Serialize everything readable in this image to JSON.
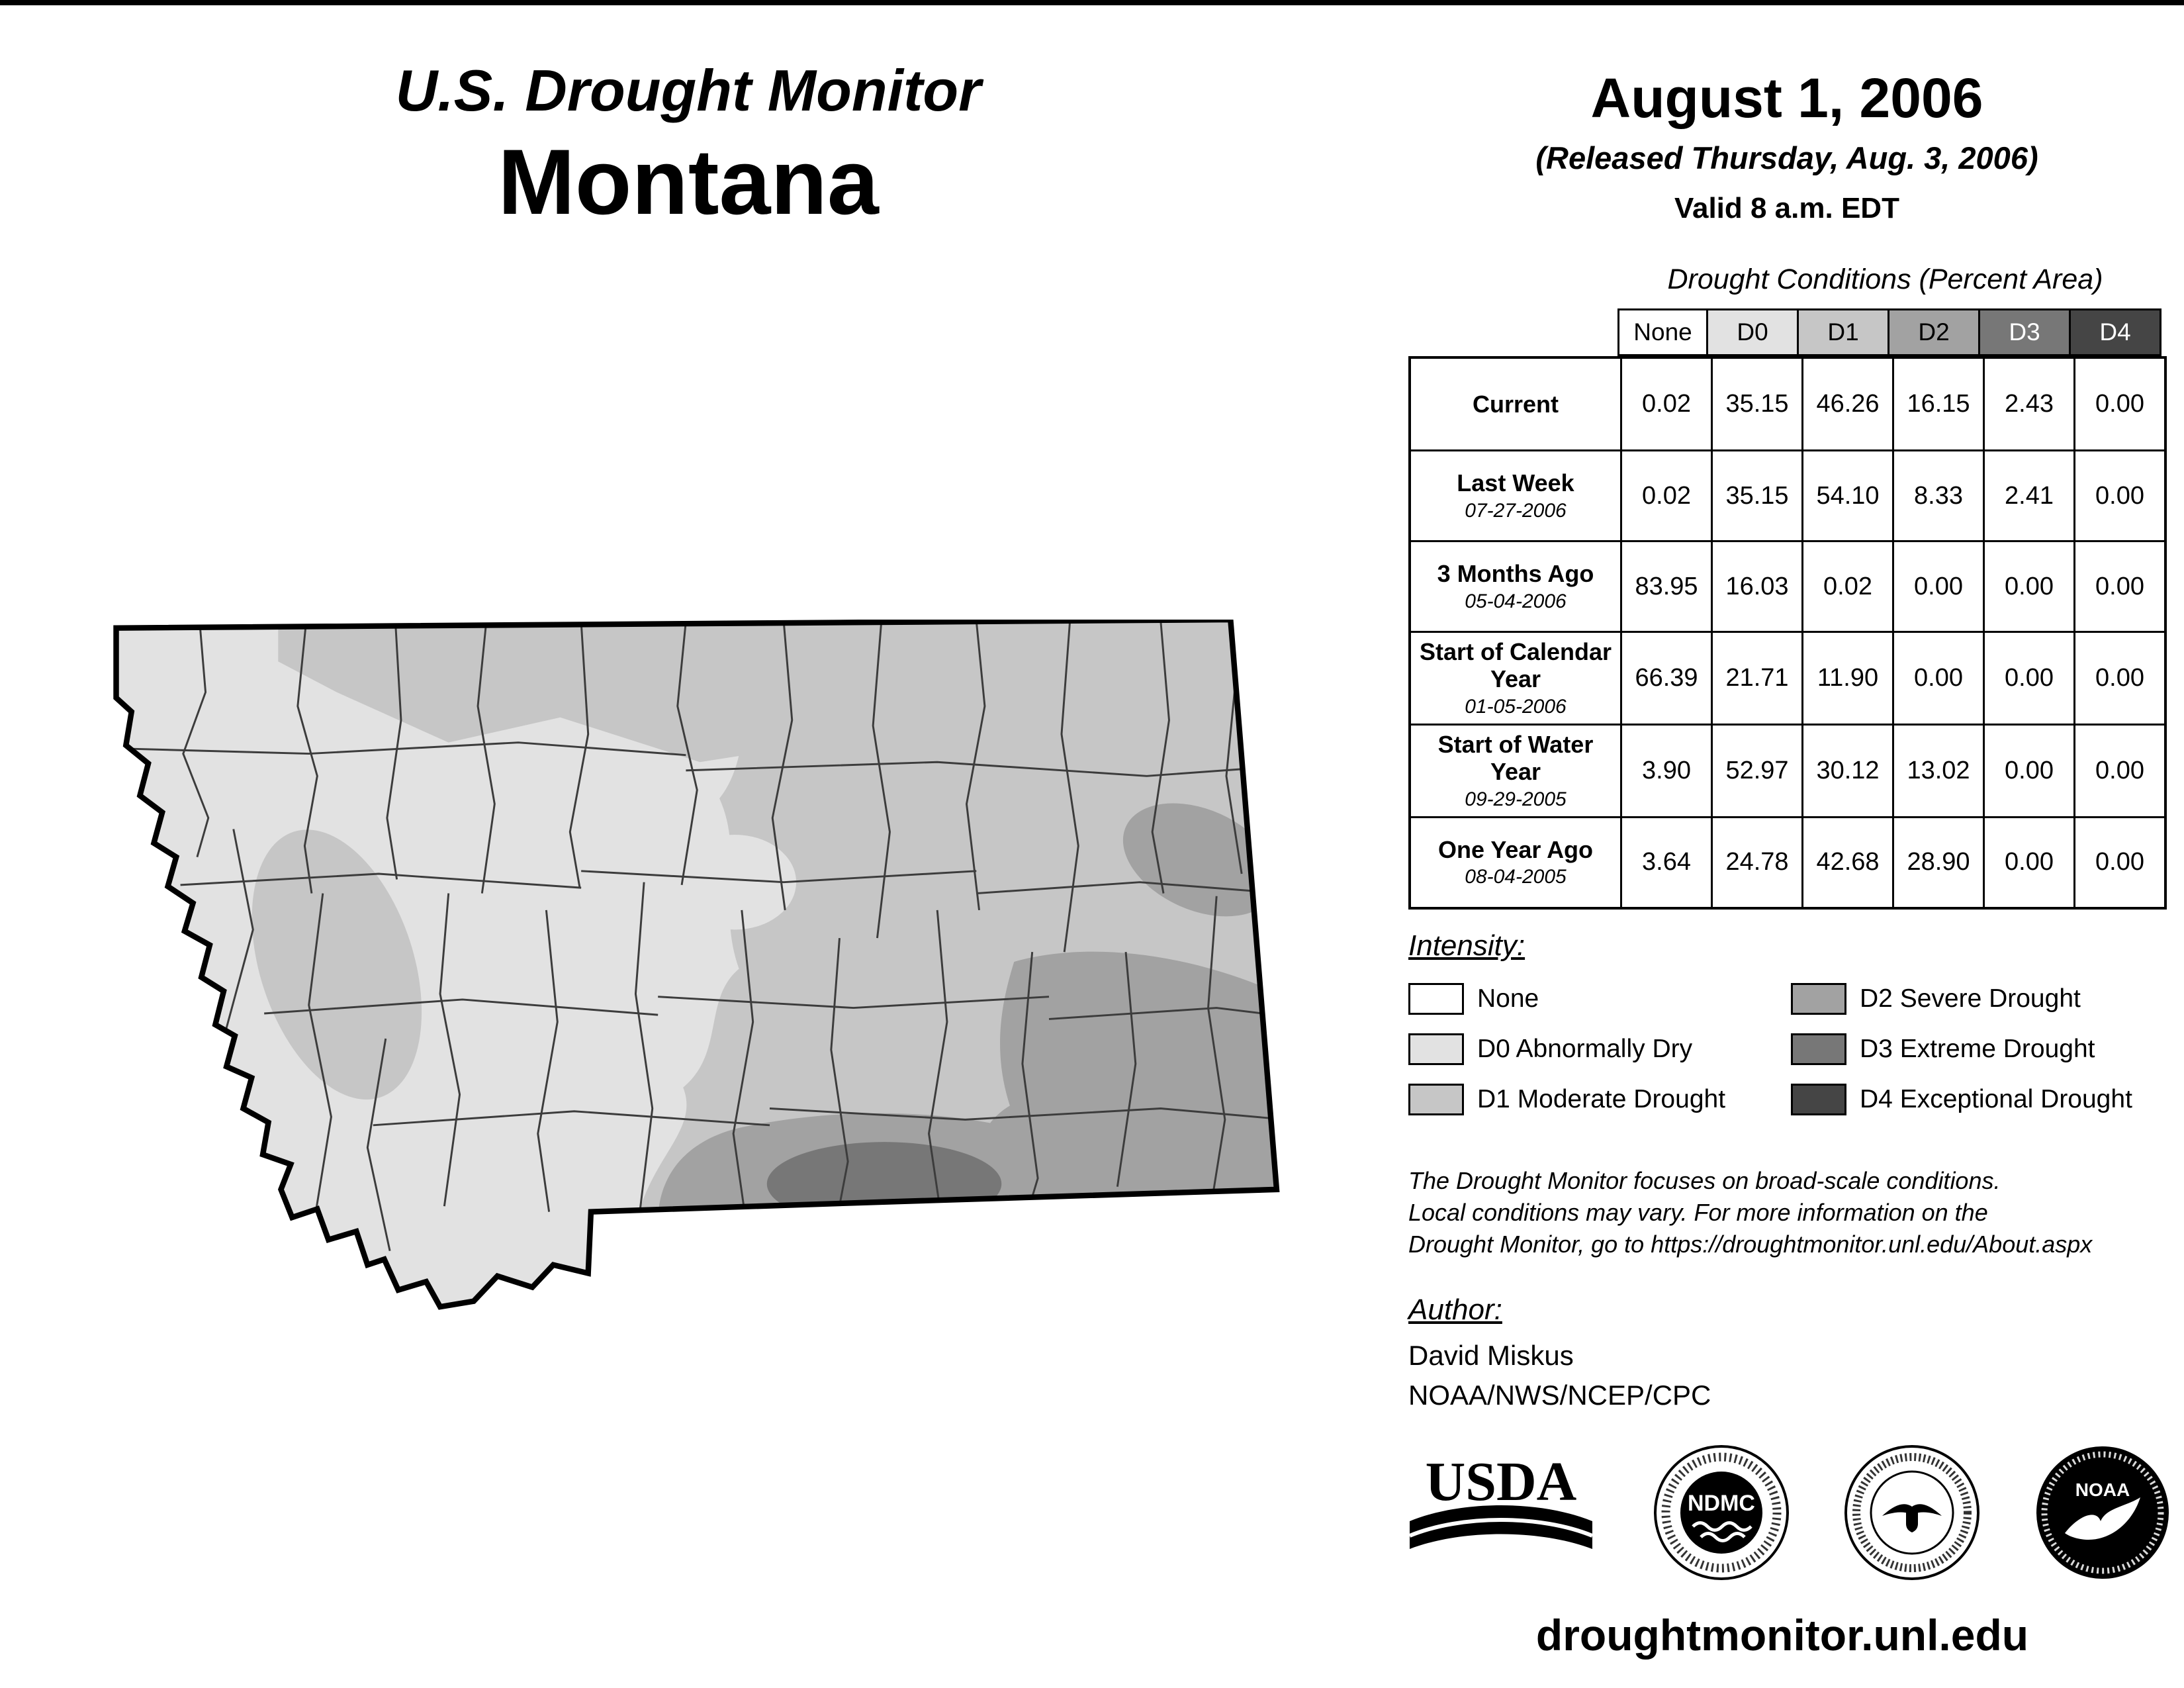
{
  "colors": {
    "none": "#ffffff",
    "d0": "#e2e2e2",
    "d1": "#c6c6c6",
    "d2": "#a2a2a2",
    "d3": "#777777",
    "d4": "#454545"
  },
  "header": {
    "product": "U.S. Drought Monitor",
    "region": "Montana",
    "date": "August 1, 2006",
    "released": "(Released Thursday, Aug. 3, 2006)",
    "valid": "Valid 8 a.m. EDT"
  },
  "table": {
    "title": "Drought Conditions (Percent Area)",
    "columns": [
      "None",
      "D0",
      "D1",
      "D2",
      "D3",
      "D4"
    ],
    "rows": [
      {
        "label": "Current",
        "date": "",
        "values": [
          "0.02",
          "35.15",
          "46.26",
          "16.15",
          "2.43",
          "0.00"
        ]
      },
      {
        "label": "Last Week",
        "date": "07-27-2006",
        "values": [
          "0.02",
          "35.15",
          "54.10",
          "8.33",
          "2.41",
          "0.00"
        ]
      },
      {
        "label": "3 Months Ago",
        "date": "05-04-2006",
        "values": [
          "83.95",
          "16.03",
          "0.02",
          "0.00",
          "0.00",
          "0.00"
        ]
      },
      {
        "label": "Start of Calendar Year",
        "date": "01-05-2006",
        "values": [
          "66.39",
          "21.71",
          "11.90",
          "0.00",
          "0.00",
          "0.00"
        ]
      },
      {
        "label": "Start of Water Year",
        "date": "09-29-2005",
        "values": [
          "3.90",
          "52.97",
          "30.12",
          "13.02",
          "0.00",
          "0.00"
        ]
      },
      {
        "label": "One Year Ago",
        "date": "08-04-2005",
        "values": [
          "3.64",
          "24.78",
          "42.68",
          "28.90",
          "0.00",
          "0.00"
        ]
      }
    ]
  },
  "legend": {
    "title": "Intensity:",
    "items": [
      {
        "key": "none",
        "label": "None"
      },
      {
        "key": "d0",
        "label": "D0 Abnormally Dry"
      },
      {
        "key": "d1",
        "label": "D1 Moderate Drought"
      },
      {
        "key": "d2",
        "label": "D2 Severe Drought"
      },
      {
        "key": "d3",
        "label": "D3 Extreme Drought"
      },
      {
        "key": "d4",
        "label": "D4 Exceptional Drought"
      }
    ]
  },
  "note": {
    "line1": "The Drought Monitor focuses on broad-scale conditions.",
    "line2": "Local conditions may vary. For more information on the",
    "line3": "Drought Monitor, go to https://droughtmonitor.unl.edu/About.aspx"
  },
  "author": {
    "title": "Author:",
    "name": "David Miskus",
    "org": "NOAA/NWS/NCEP/CPC"
  },
  "logos": {
    "usda_label": "USDA",
    "ndmc_label": "NDMC",
    "noaa_label": "NOAA"
  },
  "footer": {
    "url": "droughtmonitor.unl.edu"
  }
}
